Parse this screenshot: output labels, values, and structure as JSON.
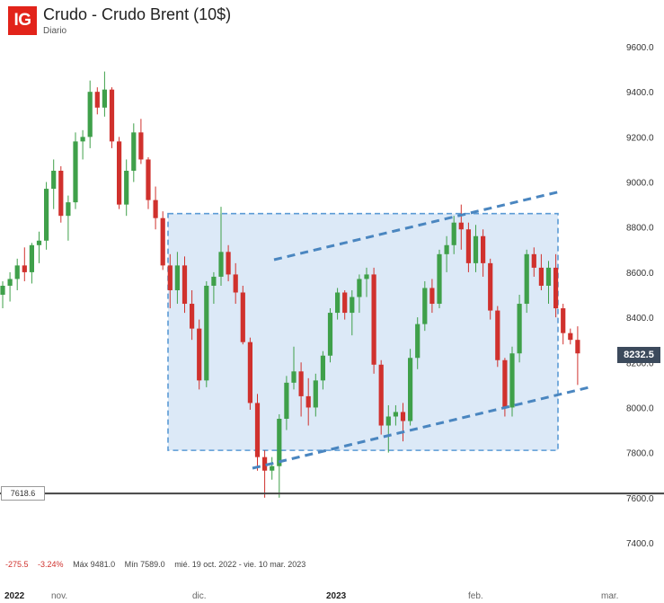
{
  "header": {
    "logo_text": "IG",
    "title": "Crudo - Crudo Brent (10$)",
    "subtitle": "Diario"
  },
  "stats": {
    "change": "-275.5",
    "change_pct": "-3.24%",
    "max": "Máx 9481.0",
    "min": "Mín 7589.0",
    "range": "mié. 19 oct. 2022 - vie. 10 mar. 2023"
  },
  "labels": {
    "horizontal_level": "7618.6",
    "last_price": "8232.5"
  },
  "colors": {
    "up": "#3fa04a",
    "down": "#d0312d",
    "box_fill": "#dce9f7",
    "box_stroke": "#5b9bd5",
    "trendline": "#4a86c0",
    "level_line": "#444444",
    "brand": "#e2231a"
  },
  "chart_data": {
    "type": "candlestick",
    "ylim": [
      7400,
      9700
    ],
    "y_ticks": [
      7400,
      7600,
      7800,
      8000,
      8200,
      8400,
      8600,
      8800,
      9000,
      9200,
      9400,
      9600
    ],
    "x_ticks": [
      "2022",
      "nov.",
      "dic.",
      "2023",
      "feb.",
      "mar."
    ],
    "horizontal_level": 7618.6,
    "rectangle": {
      "price_top": 8860,
      "price_bottom": 7810
    },
    "candles": [
      [
        8500,
        8560,
        8440,
        8540
      ],
      [
        8540,
        8600,
        8470,
        8570
      ],
      [
        8570,
        8660,
        8520,
        8630
      ],
      [
        8630,
        8710,
        8560,
        8600
      ],
      [
        8600,
        8730,
        8550,
        8720
      ],
      [
        8720,
        8780,
        8640,
        8740
      ],
      [
        8740,
        9000,
        8700,
        8970
      ],
      [
        8970,
        9100,
        8880,
        9050
      ],
      [
        9050,
        9070,
        8820,
        8850
      ],
      [
        8850,
        8940,
        8740,
        8910
      ],
      [
        8910,
        9220,
        8880,
        9180
      ],
      [
        9180,
        9230,
        9100,
        9200
      ],
      [
        9200,
        9450,
        9150,
        9400
      ],
      [
        9400,
        9420,
        9300,
        9330
      ],
      [
        9330,
        9490,
        9290,
        9410
      ],
      [
        9410,
        9420,
        9150,
        9180
      ],
      [
        9180,
        9200,
        8880,
        8900
      ],
      [
        8900,
        9100,
        8850,
        9050
      ],
      [
        9050,
        9260,
        9000,
        9220
      ],
      [
        9220,
        9280,
        9080,
        9100
      ],
      [
        9100,
        9110,
        8880,
        8920
      ],
      [
        8920,
        8980,
        8790,
        8840
      ],
      [
        8840,
        8870,
        8610,
        8630
      ],
      [
        8630,
        8680,
        8440,
        8520
      ],
      [
        8520,
        8690,
        8460,
        8630
      ],
      [
        8630,
        8670,
        8420,
        8460
      ],
      [
        8460,
        8520,
        8300,
        8350
      ],
      [
        8350,
        8390,
        8080,
        8120
      ],
      [
        8120,
        8560,
        8090,
        8540
      ],
      [
        8540,
        8600,
        8460,
        8580
      ],
      [
        8580,
        8890,
        8540,
        8690
      ],
      [
        8690,
        8720,
        8560,
        8590
      ],
      [
        8590,
        8640,
        8460,
        8510
      ],
      [
        8510,
        8540,
        8280,
        8290
      ],
      [
        8290,
        8310,
        7990,
        8020
      ],
      [
        8020,
        8060,
        7720,
        7780
      ],
      [
        7780,
        7810,
        7600,
        7720
      ],
      [
        7720,
        7780,
        7680,
        7740
      ],
      [
        7740,
        7970,
        7600,
        7950
      ],
      [
        7950,
        8140,
        7900,
        8110
      ],
      [
        8110,
        8270,
        8080,
        8160
      ],
      [
        8160,
        8200,
        7960,
        8050
      ],
      [
        8050,
        8130,
        7920,
        8000
      ],
      [
        8000,
        8150,
        7960,
        8120
      ],
      [
        8120,
        8250,
        8080,
        8230
      ],
      [
        8230,
        8440,
        8200,
        8420
      ],
      [
        8420,
        8530,
        8390,
        8510
      ],
      [
        8510,
        8520,
        8390,
        8420
      ],
      [
        8420,
        8520,
        8320,
        8490
      ],
      [
        8490,
        8590,
        8420,
        8570
      ],
      [
        8570,
        8620,
        8490,
        8590
      ],
      [
        8590,
        8620,
        8150,
        8190
      ],
      [
        8190,
        8210,
        7880,
        7920
      ],
      [
        7920,
        8010,
        7800,
        7960
      ],
      [
        7960,
        8010,
        7920,
        7980
      ],
      [
        7980,
        8020,
        7850,
        7940
      ],
      [
        7940,
        8260,
        7920,
        8220
      ],
      [
        8220,
        8400,
        8170,
        8370
      ],
      [
        8370,
        8560,
        8340,
        8530
      ],
      [
        8530,
        8570,
        8420,
        8460
      ],
      [
        8460,
        8700,
        8440,
        8680
      ],
      [
        8680,
        8760,
        8600,
        8720
      ],
      [
        8720,
        8850,
        8680,
        8820
      ],
      [
        8820,
        8900,
        8700,
        8790
      ],
      [
        8790,
        8820,
        8600,
        8640
      ],
      [
        8640,
        8810,
        8600,
        8760
      ],
      [
        8760,
        8790,
        8580,
        8640
      ],
      [
        8640,
        8660,
        8390,
        8430
      ],
      [
        8430,
        8450,
        8180,
        8210
      ],
      [
        8210,
        8220,
        7960,
        8000
      ],
      [
        8000,
        8270,
        7960,
        8240
      ],
      [
        8240,
        8500,
        8200,
        8460
      ],
      [
        8460,
        8700,
        8420,
        8680
      ],
      [
        8680,
        8710,
        8580,
        8620
      ],
      [
        8620,
        8680,
        8520,
        8540
      ],
      [
        8540,
        8650,
        8460,
        8620
      ],
      [
        8620,
        8680,
        8400,
        8440
      ],
      [
        8440,
        8460,
        8280,
        8330
      ],
      [
        8330,
        8350,
        8280,
        8300
      ],
      [
        8300,
        8360,
        8100,
        8240
      ]
    ]
  }
}
